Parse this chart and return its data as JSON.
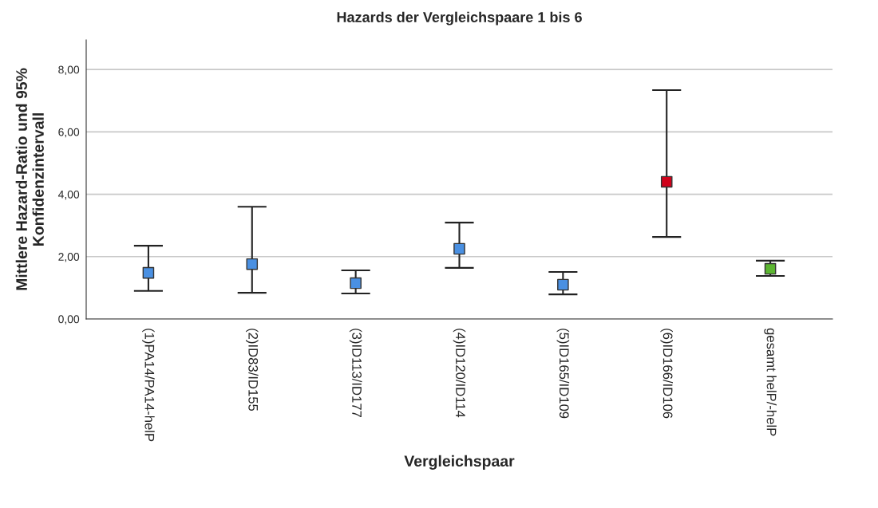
{
  "chart_data": {
    "type": "scatter",
    "title": "Hazards der Vergleichspaare 1 bis 6",
    "xlabel": "Vergleichspaar",
    "ylabel": "Mittlere Hazard-Ratio und 95%\nKonfidenzintervall",
    "categories": [
      "(1)PA14/PA14-helP",
      "(2)ID83/ID155",
      "(3)ID113/ID177",
      "(4)ID120/ID114",
      "(5)ID165/ID109",
      "(6)ID166/ID106",
      "gesamt helP/-helP"
    ],
    "series": [
      {
        "colors": [
          "#4a90e2",
          "#4a90e2",
          "#4a90e2",
          "#4a90e2",
          "#4a90e2",
          "#d0021b",
          "#5cb531"
        ],
        "values": [
          1.48,
          1.76,
          1.15,
          2.25,
          1.1,
          4.4,
          1.61
        ],
        "errors": [
          [
            0.9,
            2.35
          ],
          [
            0.84,
            3.6
          ],
          [
            0.82,
            1.56
          ],
          [
            1.64,
            3.09
          ],
          [
            0.79,
            1.51
          ],
          [
            2.63,
            7.34
          ],
          [
            1.38,
            1.87
          ]
        ]
      }
    ],
    "marker": "square",
    "grid": "y",
    "legend": false,
    "ylim": [
      0,
      8.95
    ],
    "yticks": [
      {
        "value": 0,
        "label": "0,00"
      },
      {
        "value": 2,
        "label": "2,00"
      },
      {
        "value": 4,
        "label": "4,00"
      },
      {
        "value": 6,
        "label": "6,00"
      },
      {
        "value": 8,
        "label": "8,00"
      }
    ]
  }
}
